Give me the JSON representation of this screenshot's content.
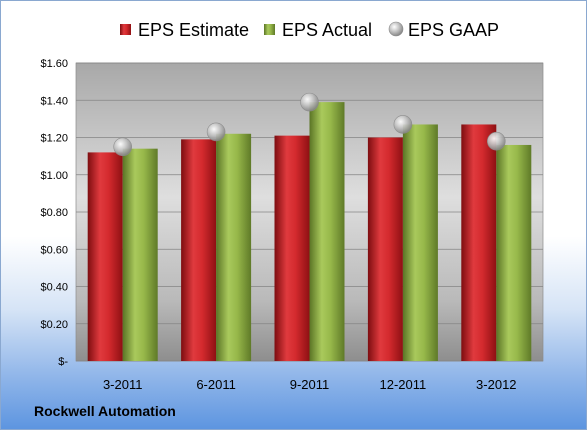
{
  "company": "Rockwell Automation",
  "chart_data": {
    "type": "bar",
    "categories": [
      "3-2011",
      "6-2011",
      "9-2011",
      "12-2011",
      "3-2012"
    ],
    "series": [
      {
        "name": "EPS Estimate",
        "type": "bar",
        "color": "#c0161b",
        "values": [
          1.12,
          1.19,
          1.21,
          1.2,
          1.27
        ]
      },
      {
        "name": "EPS Actual",
        "type": "bar",
        "color": "#86a63a",
        "values": [
          1.14,
          1.22,
          1.39,
          1.27,
          1.16
        ]
      },
      {
        "name": "EPS GAAP",
        "type": "scatter",
        "color": "#a9a9a9",
        "values": [
          1.15,
          1.23,
          1.39,
          1.27,
          1.18
        ]
      }
    ],
    "ylim": [
      0,
      1.6
    ],
    "yticks": [
      0,
      0.2,
      0.4,
      0.6,
      0.8,
      1.0,
      1.2,
      1.4,
      1.6
    ],
    "ytick_labels": [
      "$-",
      "$0.20",
      "$0.40",
      "$0.60",
      "$0.80",
      "$1.00",
      "$1.20",
      "$1.40",
      "$1.60"
    ],
    "grid": true,
    "legend_position": "top"
  }
}
